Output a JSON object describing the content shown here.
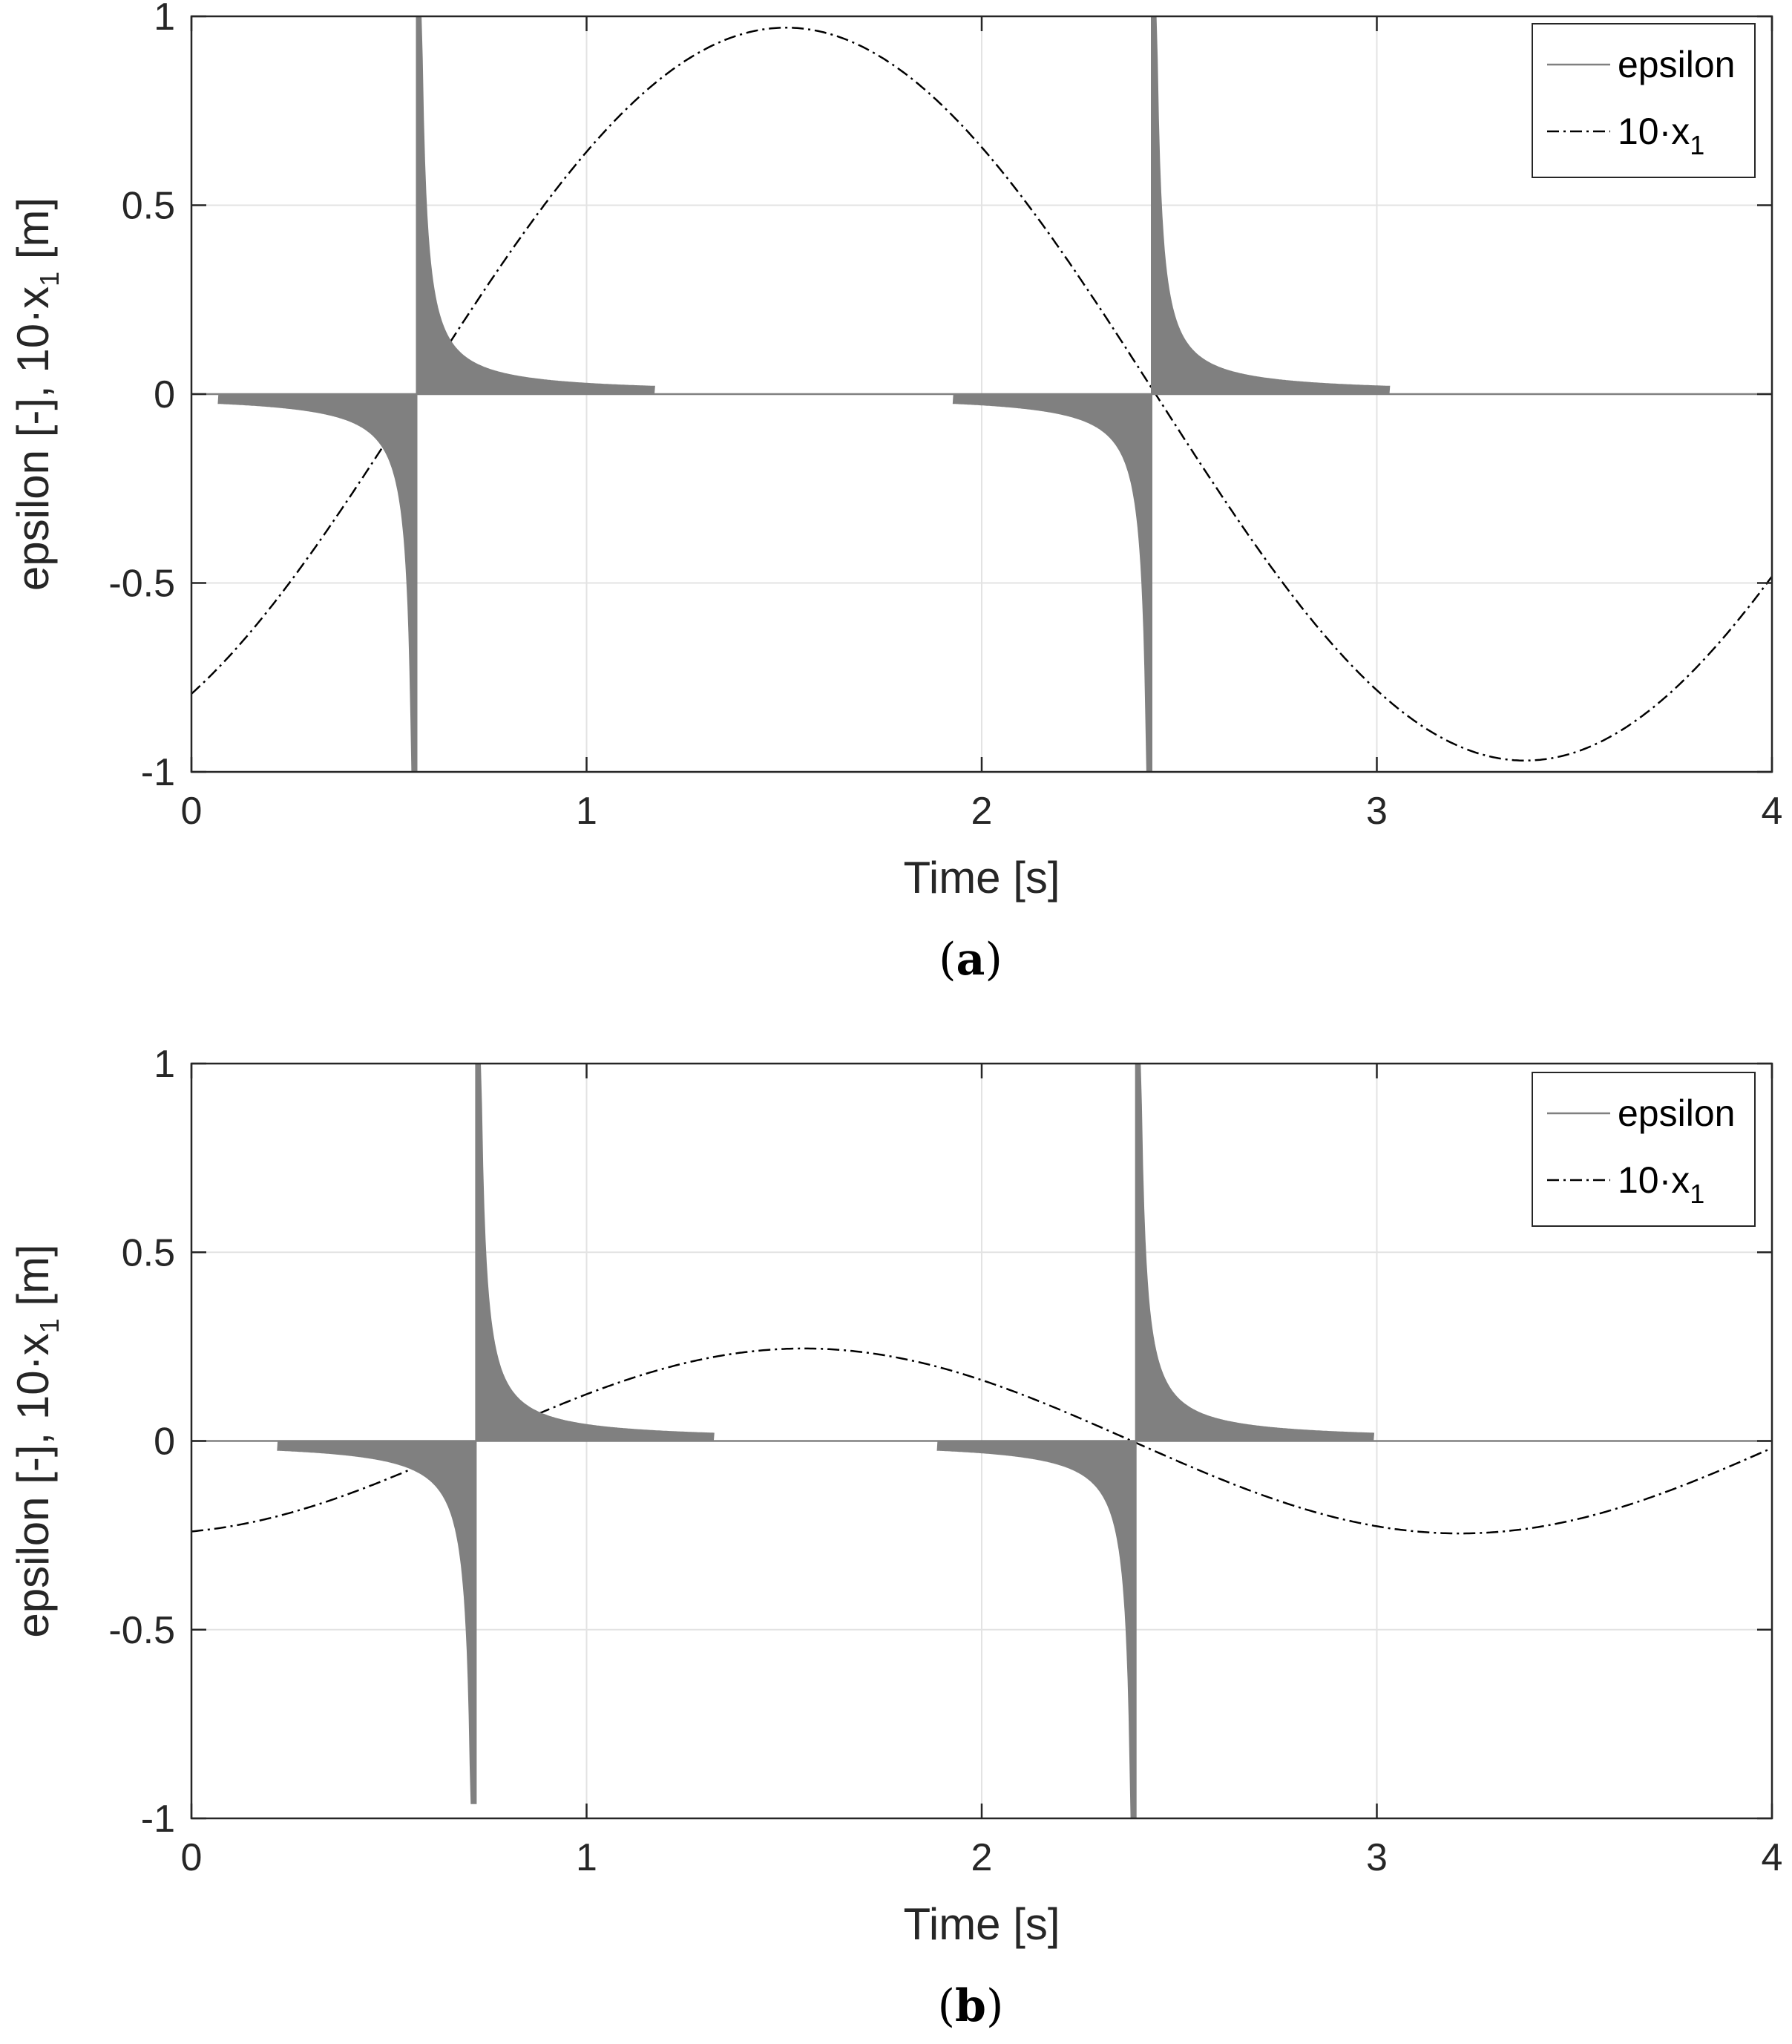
{
  "chart_data": [
    {
      "id": "a",
      "type": "line",
      "panel_label": "a",
      "xlabel": "Time [s]",
      "ylabel": "epsilon [-], 10·x",
      "ylabel_sub": "1",
      "ylabel_suffix": " [m]",
      "xlim": [
        0,
        4
      ],
      "ylim": [
        -1,
        1
      ],
      "xticks": [
        "0",
        "1",
        "2",
        "3",
        "4"
      ],
      "yticks": [
        "1",
        "0.5",
        "0",
        "-0.5",
        "-1"
      ],
      "grid": true,
      "legend": {
        "position": "top-right",
        "entries": [
          "epsilon",
          "10·x",
          "1"
        ]
      },
      "series": [
        {
          "name": "10·x1",
          "style": "dash-dot",
          "color": "#000000",
          "model": "sine",
          "amplitude": 0.97,
          "period": 3.74,
          "phase_time": 0.57,
          "x_samples": [
            0,
            0.57,
            1.0,
            1.5,
            2.0,
            2.43,
            3.0,
            3.37,
            4.0
          ],
          "y_samples": [
            -0.8,
            0.0,
            0.65,
            0.97,
            0.64,
            0.0,
            -0.8,
            -0.97,
            -0.44
          ]
        },
        {
          "name": "epsilon",
          "style": "solid",
          "color": "#808080",
          "model": "spikes",
          "events": [
            {
              "x": 0.57,
              "ymin": -1.0,
              "ymax": 1.0
            },
            {
              "x": 2.43,
              "ymin": -1.0,
              "ymax": 1.0
            }
          ]
        }
      ]
    },
    {
      "id": "b",
      "type": "line",
      "panel_label": "b",
      "xlabel": "Time [s]",
      "ylabel": "epsilon [-], 10·x",
      "ylabel_sub": "1",
      "ylabel_suffix": " [m]",
      "xlim": [
        0,
        4
      ],
      "ylim": [
        -1,
        1
      ],
      "xticks": [
        "0",
        "1",
        "2",
        "3",
        "4"
      ],
      "yticks": [
        "1",
        "0.5",
        "0",
        "-0.5",
        "-1"
      ],
      "grid": true,
      "legend": {
        "position": "top-right",
        "entries": [
          "epsilon",
          "10·x",
          "1"
        ]
      },
      "series": [
        {
          "name": "10·x1",
          "style": "dash-dot",
          "color": "#000000",
          "model": "sine",
          "amplitude": 0.245,
          "period": 3.32,
          "phase_time": 0.72,
          "x_samples": [
            0,
            0.72,
            1.0,
            1.55,
            2.0,
            2.39,
            3.0,
            3.22,
            4.0
          ],
          "y_samples": [
            -0.24,
            0.0,
            0.11,
            0.245,
            0.16,
            0.0,
            -0.22,
            -0.245,
            -0.02
          ]
        },
        {
          "name": "epsilon",
          "style": "solid",
          "color": "#808080",
          "model": "spikes",
          "events": [
            {
              "x": 0.72,
              "ymin": -0.96,
              "ymax": 1.0
            },
            {
              "x": 2.39,
              "ymin": -1.0,
              "ymax": 1.0
            }
          ]
        }
      ]
    }
  ]
}
